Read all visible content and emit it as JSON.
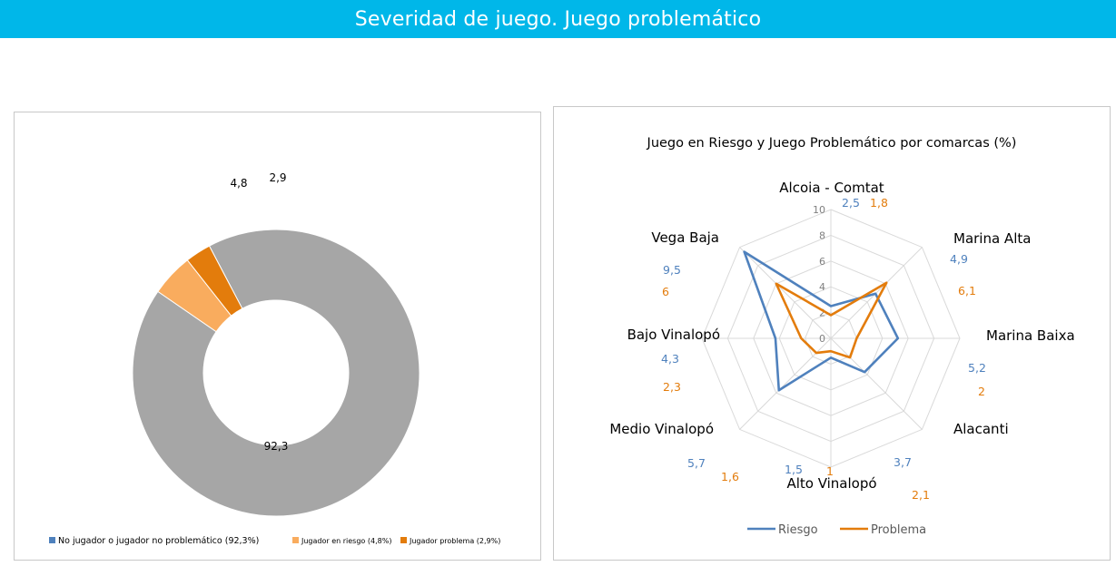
{
  "banner": {
    "title": "Severidad de juego. Juego problemático"
  },
  "colors": {
    "banner": "#00b7e9",
    "no_jugador": "#a6a6a6",
    "riesgo_slice": "#f9ac5e",
    "problema_slice": "#e37c0c",
    "legend_no_jugador": "#4f81bd",
    "riesgo_line": "#4f81bd",
    "problema_line": "#e37c0c"
  },
  "chart_data": [
    {
      "type": "pie",
      "subtype": "donut",
      "categories": [
        "No jugador o jugador no problemático (92,3%)",
        "Jugador en riesgo (4,8%)",
        "Jugador problema (2,9%)"
      ],
      "values": [
        92.3,
        4.8,
        2.9
      ],
      "data_labels": [
        "92,3",
        "4,8",
        "2,9"
      ],
      "legend_placement": "bottom"
    },
    {
      "type": "radar",
      "title": "Juego en Riesgo y Juego Problemático por comarcas (%)",
      "categories": [
        "Alcoia - Comtat",
        "Marina Alta",
        "Marina Baixa",
        "Alacanti",
        "Alto Vinalopó",
        "Medio Vinalopó",
        "Bajo Vinalopó",
        "Vega Baja"
      ],
      "series": [
        {
          "name": "Riesgo",
          "values": [
            2.5,
            4.9,
            5.2,
            3.7,
            1.5,
            5.7,
            4.3,
            9.5
          ],
          "labels": [
            "2,5",
            "4,9",
            "5,2",
            "3,7",
            "1,5",
            "5,7",
            "4,3",
            "9,5"
          ]
        },
        {
          "name": "Problema",
          "values": [
            1.8,
            6.1,
            2,
            2.1,
            1,
            1.6,
            2.3,
            6
          ],
          "labels": [
            "1,8",
            "6,1",
            "2",
            "2,1",
            "1",
            "1,6",
            "2,3",
            "6"
          ]
        }
      ],
      "rlim": [
        0,
        10
      ],
      "ticks": [
        "0",
        "2",
        "4",
        "6",
        "8",
        "10"
      ],
      "grid": true,
      "legend_placement": "bottom"
    }
  ]
}
